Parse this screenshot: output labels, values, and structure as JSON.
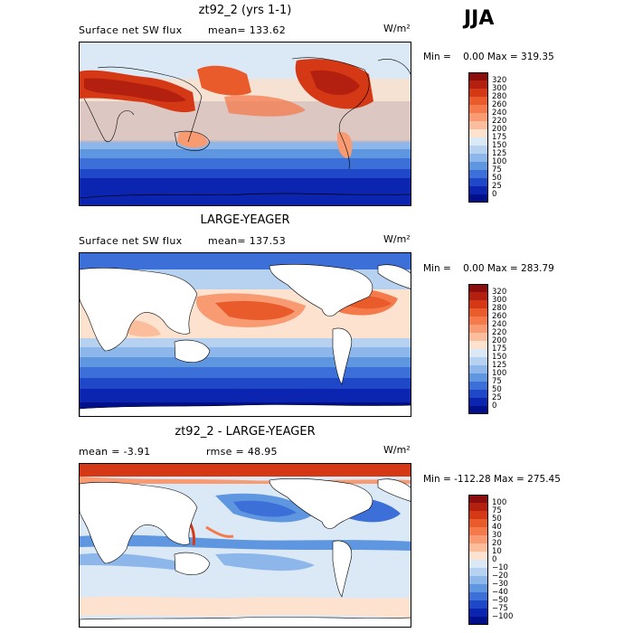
{
  "season": "JJA",
  "panels": [
    {
      "title": "zt92_2 (yrs 1-1)",
      "variable": "Surface net SW flux",
      "stat": "mean= 133.62",
      "units": "W/m²",
      "minmax": "Min =    0.00 Max = 319.35",
      "colorbar": {
        "labels": [
          "320",
          "300",
          "280",
          "260",
          "240",
          "220",
          "200",
          "175",
          "150",
          "125",
          "100",
          "75",
          "50",
          "25",
          "0"
        ],
        "colors": [
          "#8b0d0d",
          "#b3200f",
          "#d43814",
          "#ea5b2c",
          "#f47a4c",
          "#f89a72",
          "#fbbd9c",
          "#fde3cf",
          "#dbe8f6",
          "#b7d2f0",
          "#8db7ea",
          "#5f96e0",
          "#3c6fd8",
          "#1f48c9",
          "#0b25b0",
          "#000f8a"
        ]
      }
    },
    {
      "title": "LARGE-YEAGER",
      "variable": "Surface net SW flux",
      "stat": "mean= 137.53",
      "units": "W/m²",
      "minmax": "Min =    0.00 Max = 283.79",
      "colorbar": {
        "labels": [
          "320",
          "300",
          "280",
          "260",
          "240",
          "220",
          "200",
          "175",
          "150",
          "125",
          "100",
          "75",
          "50",
          "25",
          "0"
        ],
        "colors": [
          "#8b0d0d",
          "#b3200f",
          "#d43814",
          "#ea5b2c",
          "#f47a4c",
          "#f89a72",
          "#fbbd9c",
          "#fde3cf",
          "#dbe8f6",
          "#b7d2f0",
          "#8db7ea",
          "#5f96e0",
          "#3c6fd8",
          "#1f48c9",
          "#0b25b0",
          "#000f8a"
        ]
      }
    },
    {
      "title": "zt92_2 - LARGE-YEAGER",
      "variable": "mean =  -3.91",
      "stat": "rmse =  48.95",
      "units": "W/m²",
      "minmax": "Min = -112.28 Max = 275.45",
      "colorbar": {
        "labels": [
          "100",
          "75",
          "50",
          "40",
          "30",
          "20",
          "10",
          "0",
          "−10",
          "−20",
          "−30",
          "−40",
          "−50",
          "−75",
          "−100"
        ],
        "colors": [
          "#8b0d0d",
          "#b3200f",
          "#d43814",
          "#ea5b2c",
          "#f47a4c",
          "#f89a72",
          "#fbbd9c",
          "#fde3cf",
          "#dbe8f6",
          "#b7d2f0",
          "#8db7ea",
          "#5f96e0",
          "#3c6fd8",
          "#1f48c9",
          "#0b25b0",
          "#000f8a"
        ]
      }
    }
  ]
}
